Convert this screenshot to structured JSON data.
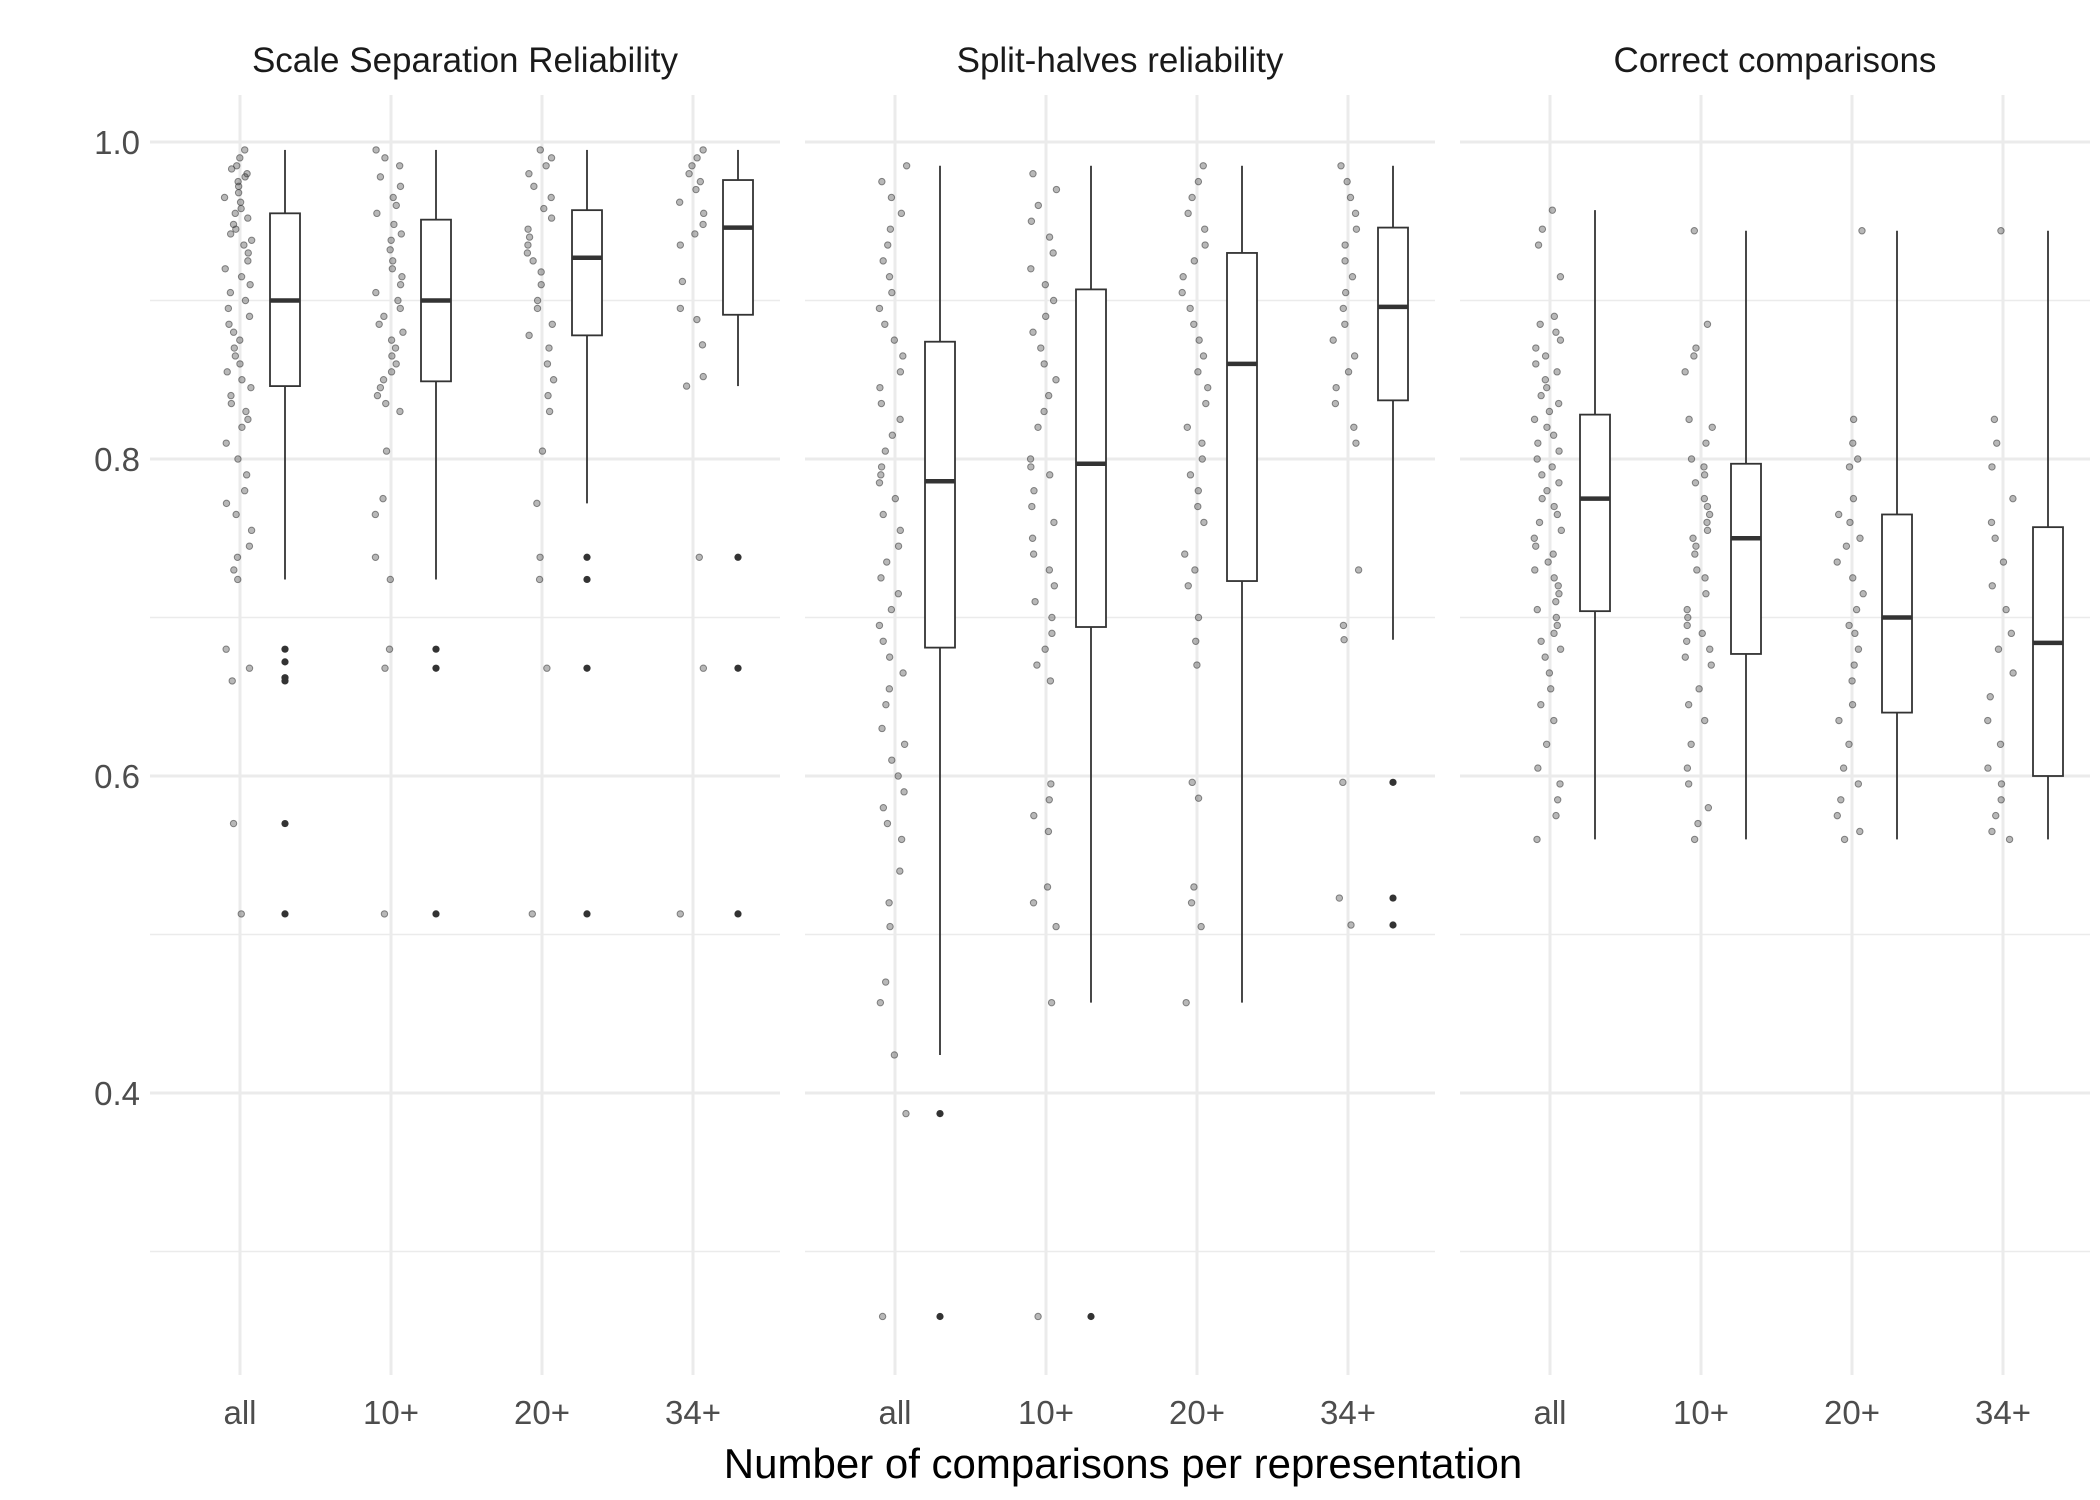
{
  "chart_data": {
    "type": "box",
    "xlabel": "Number of comparisons per representation",
    "ylabel": "",
    "ylim": [
      0.25,
      1.03
    ],
    "y_ticks": [
      "0.4",
      "0.6",
      "0.8",
      "1.0"
    ],
    "y_tick_values": [
      0.4,
      0.6,
      0.8,
      1.0
    ],
    "categories": [
      "all",
      "10+",
      "20+",
      "34+"
    ],
    "grid": true,
    "legend": "none",
    "colors": {
      "grid": "#ebebeb",
      "box_stroke": "#333333",
      "point": "#333333"
    },
    "facets": [
      {
        "title": "Scale Separation Reliability",
        "boxes": [
          {
            "category": "all",
            "q1": 0.846,
            "median": 0.9,
            "q3": 0.955,
            "whisker_low": 0.724,
            "whisker_high": 0.995,
            "outliers": [
              0.68,
              0.672,
              0.662,
              0.66,
              0.57,
              0.513
            ]
          },
          {
            "category": "10+",
            "q1": 0.849,
            "median": 0.9,
            "q3": 0.951,
            "whisker_low": 0.724,
            "whisker_high": 0.995,
            "outliers": [
              0.68,
              0.668,
              0.513
            ]
          },
          {
            "category": "20+",
            "q1": 0.878,
            "median": 0.927,
            "q3": 0.957,
            "whisker_low": 0.772,
            "whisker_high": 0.995,
            "outliers": [
              0.738,
              0.724,
              0.668,
              0.513
            ]
          },
          {
            "category": "34+",
            "q1": 0.891,
            "median": 0.946,
            "q3": 0.976,
            "whisker_low": 0.846,
            "whisker_high": 0.995,
            "outliers": [
              0.738,
              0.668,
              0.513
            ]
          }
        ],
        "points": [
          {
            "category": "all",
            "values": [
              0.995,
              0.99,
              0.985,
              0.983,
              0.98,
              0.978,
              0.975,
              0.972,
              0.968,
              0.965,
              0.962,
              0.958,
              0.955,
              0.952,
              0.948,
              0.945,
              0.942,
              0.938,
              0.935,
              0.93,
              0.925,
              0.92,
              0.915,
              0.91,
              0.905,
              0.9,
              0.895,
              0.89,
              0.885,
              0.88,
              0.875,
              0.87,
              0.865,
              0.86,
              0.855,
              0.85,
              0.845,
              0.84,
              0.835,
              0.83,
              0.825,
              0.82,
              0.81,
              0.8,
              0.79,
              0.78,
              0.772,
              0.765,
              0.755,
              0.745,
              0.738,
              0.73,
              0.724,
              0.68,
              0.668,
              0.66,
              0.57,
              0.513
            ]
          },
          {
            "category": "10+",
            "values": [
              0.995,
              0.99,
              0.985,
              0.978,
              0.972,
              0.965,
              0.96,
              0.955,
              0.948,
              0.942,
              0.938,
              0.932,
              0.925,
              0.92,
              0.915,
              0.91,
              0.905,
              0.9,
              0.895,
              0.89,
              0.885,
              0.88,
              0.875,
              0.87,
              0.865,
              0.86,
              0.855,
              0.85,
              0.845,
              0.84,
              0.835,
              0.83,
              0.805,
              0.775,
              0.765,
              0.738,
              0.724,
              0.68,
              0.668,
              0.513
            ]
          },
          {
            "category": "20+",
            "values": [
              0.995,
              0.99,
              0.985,
              0.98,
              0.972,
              0.965,
              0.958,
              0.952,
              0.945,
              0.94,
              0.935,
              0.93,
              0.925,
              0.918,
              0.91,
              0.9,
              0.895,
              0.885,
              0.878,
              0.87,
              0.86,
              0.85,
              0.84,
              0.83,
              0.805,
              0.772,
              0.738,
              0.724,
              0.668,
              0.513
            ]
          },
          {
            "category": "34+",
            "values": [
              0.995,
              0.99,
              0.985,
              0.98,
              0.975,
              0.97,
              0.962,
              0.955,
              0.948,
              0.942,
              0.935,
              0.912,
              0.895,
              0.888,
              0.872,
              0.852,
              0.846,
              0.738,
              0.668,
              0.513
            ]
          }
        ]
      },
      {
        "title": "Split-halves reliability",
        "boxes": [
          {
            "category": "all",
            "q1": 0.681,
            "median": 0.786,
            "q3": 0.874,
            "whisker_low": 0.424,
            "whisker_high": 0.985,
            "outliers": [
              0.387,
              0.259
            ]
          },
          {
            "category": "10+",
            "q1": 0.694,
            "median": 0.797,
            "q3": 0.907,
            "whisker_low": 0.457,
            "whisker_high": 0.985,
            "outliers": [
              0.259
            ]
          },
          {
            "category": "20+",
            "q1": 0.723,
            "median": 0.86,
            "q3": 0.93,
            "whisker_low": 0.457,
            "whisker_high": 0.985,
            "outliers": []
          },
          {
            "category": "34+",
            "q1": 0.837,
            "median": 0.896,
            "q3": 0.946,
            "whisker_low": 0.686,
            "whisker_high": 0.985,
            "outliers": [
              0.596,
              0.523,
              0.506
            ]
          }
        ],
        "points": [
          {
            "category": "all",
            "values": [
              0.985,
              0.975,
              0.965,
              0.955,
              0.945,
              0.935,
              0.925,
              0.915,
              0.905,
              0.895,
              0.885,
              0.875,
              0.865,
              0.855,
              0.845,
              0.835,
              0.825,
              0.815,
              0.805,
              0.795,
              0.79,
              0.785,
              0.775,
              0.765,
              0.755,
              0.745,
              0.735,
              0.725,
              0.715,
              0.705,
              0.695,
              0.685,
              0.675,
              0.665,
              0.655,
              0.645,
              0.63,
              0.62,
              0.61,
              0.6,
              0.59,
              0.58,
              0.57,
              0.56,
              0.54,
              0.52,
              0.505,
              0.47,
              0.457,
              0.424,
              0.387,
              0.259
            ]
          },
          {
            "category": "10+",
            "values": [
              0.98,
              0.97,
              0.96,
              0.95,
              0.94,
              0.93,
              0.92,
              0.91,
              0.9,
              0.89,
              0.88,
              0.87,
              0.86,
              0.85,
              0.84,
              0.83,
              0.82,
              0.8,
              0.795,
              0.79,
              0.78,
              0.77,
              0.76,
              0.75,
              0.74,
              0.73,
              0.72,
              0.71,
              0.7,
              0.69,
              0.68,
              0.67,
              0.66,
              0.595,
              0.585,
              0.575,
              0.565,
              0.53,
              0.52,
              0.505,
              0.457,
              0.259
            ]
          },
          {
            "category": "20+",
            "values": [
              0.985,
              0.975,
              0.965,
              0.955,
              0.945,
              0.935,
              0.925,
              0.915,
              0.905,
              0.895,
              0.885,
              0.875,
              0.865,
              0.855,
              0.845,
              0.835,
              0.82,
              0.81,
              0.8,
              0.79,
              0.78,
              0.77,
              0.76,
              0.74,
              0.73,
              0.72,
              0.7,
              0.685,
              0.67,
              0.596,
              0.586,
              0.53,
              0.52,
              0.505,
              0.457
            ]
          },
          {
            "category": "34+",
            "values": [
              0.985,
              0.975,
              0.965,
              0.955,
              0.945,
              0.935,
              0.925,
              0.915,
              0.905,
              0.895,
              0.885,
              0.875,
              0.865,
              0.855,
              0.845,
              0.835,
              0.82,
              0.81,
              0.73,
              0.695,
              0.686,
              0.596,
              0.523,
              0.506
            ]
          }
        ]
      },
      {
        "title": "Correct comparisons",
        "boxes": [
          {
            "category": "all",
            "q1": 0.704,
            "median": 0.775,
            "q3": 0.828,
            "whisker_low": 0.56,
            "whisker_high": 0.957,
            "outliers": []
          },
          {
            "category": "10+",
            "q1": 0.677,
            "median": 0.75,
            "q3": 0.797,
            "whisker_low": 0.56,
            "whisker_high": 0.944,
            "outliers": []
          },
          {
            "category": "20+",
            "q1": 0.64,
            "median": 0.7,
            "q3": 0.765,
            "whisker_low": 0.56,
            "whisker_high": 0.944,
            "outliers": []
          },
          {
            "category": "34+",
            "q1": 0.6,
            "median": 0.684,
            "q3": 0.757,
            "whisker_low": 0.56,
            "whisker_high": 0.944,
            "outliers": []
          }
        ],
        "points": [
          {
            "category": "all",
            "values": [
              0.957,
              0.945,
              0.935,
              0.915,
              0.89,
              0.885,
              0.88,
              0.875,
              0.87,
              0.865,
              0.86,
              0.855,
              0.85,
              0.845,
              0.84,
              0.835,
              0.83,
              0.825,
              0.82,
              0.815,
              0.81,
              0.805,
              0.8,
              0.795,
              0.79,
              0.785,
              0.78,
              0.775,
              0.77,
              0.765,
              0.76,
              0.755,
              0.75,
              0.745,
              0.74,
              0.735,
              0.73,
              0.725,
              0.72,
              0.715,
              0.71,
              0.705,
              0.7,
              0.695,
              0.69,
              0.685,
              0.68,
              0.675,
              0.665,
              0.655,
              0.645,
              0.635,
              0.62,
              0.605,
              0.595,
              0.585,
              0.575,
              0.56
            ]
          },
          {
            "category": "10+",
            "values": [
              0.944,
              0.885,
              0.87,
              0.865,
              0.855,
              0.825,
              0.82,
              0.81,
              0.8,
              0.795,
              0.79,
              0.785,
              0.775,
              0.77,
              0.765,
              0.76,
              0.755,
              0.75,
              0.745,
              0.74,
              0.73,
              0.725,
              0.715,
              0.705,
              0.7,
              0.695,
              0.69,
              0.685,
              0.68,
              0.675,
              0.67,
              0.655,
              0.645,
              0.635,
              0.62,
              0.605,
              0.595,
              0.58,
              0.57,
              0.56
            ]
          },
          {
            "category": "20+",
            "values": [
              0.944,
              0.825,
              0.81,
              0.8,
              0.795,
              0.775,
              0.765,
              0.76,
              0.75,
              0.745,
              0.735,
              0.725,
              0.715,
              0.705,
              0.695,
              0.69,
              0.68,
              0.67,
              0.66,
              0.645,
              0.635,
              0.62,
              0.605,
              0.595,
              0.585,
              0.575,
              0.565,
              0.56
            ]
          },
          {
            "category": "34+",
            "values": [
              0.944,
              0.825,
              0.81,
              0.795,
              0.775,
              0.76,
              0.75,
              0.735,
              0.72,
              0.705,
              0.69,
              0.68,
              0.665,
              0.65,
              0.635,
              0.62,
              0.605,
              0.595,
              0.585,
              0.575,
              0.565,
              0.56
            ]
          }
        ]
      }
    ]
  }
}
